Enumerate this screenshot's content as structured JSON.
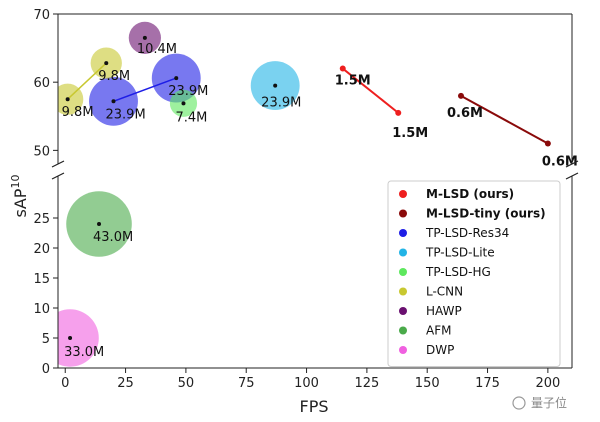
{
  "chart_data": {
    "type": "scatter",
    "xlabel": "FPS",
    "ylabel": "sAP",
    "ylabel_sup": "10",
    "xlim": [
      -3,
      210
    ],
    "xticks": [
      0,
      25,
      50,
      75,
      100,
      125,
      150,
      175,
      200
    ],
    "upper_panel": {
      "ylim": [
        48,
        70
      ],
      "yticks": [
        50,
        60,
        70
      ]
    },
    "lower_panel": {
      "ylim": [
        0,
        32
      ],
      "yticks": [
        0,
        5,
        10,
        15,
        20,
        25
      ]
    },
    "legend_position": "lower-right",
    "series": [
      {
        "name": "M-LSD (ours)",
        "color": "#ee1f1f",
        "bold": true,
        "points": [
          {
            "x": 115,
            "y": 62.0,
            "label": "1.5M"
          },
          {
            "x": 138,
            "y": 55.5,
            "label": "1.5M"
          }
        ]
      },
      {
        "name": "M-LSD-tiny (ours)",
        "color": "#8a0a0a",
        "bold": true,
        "points": [
          {
            "x": 164,
            "y": 58.0,
            "label": "0.6M"
          },
          {
            "x": 200,
            "y": 51.0,
            "label": "0.6M"
          }
        ]
      },
      {
        "name": "TP-LSD-Res34",
        "color": "#1e1ee6",
        "points": [
          {
            "x": 20,
            "y": 57.2,
            "label": "23.9M"
          },
          {
            "x": 46,
            "y": 60.6,
            "label": "23.9M"
          }
        ]
      },
      {
        "name": "TP-LSD-Lite",
        "color": "#22b4e6",
        "points": [
          {
            "x": 87,
            "y": 59.5,
            "label": "23.9M"
          }
        ]
      },
      {
        "name": "TP-LSD-HG",
        "color": "#5ee85e",
        "points": [
          {
            "x": 49,
            "y": 56.9,
            "label": "7.4M"
          }
        ]
      },
      {
        "name": "L-CNN",
        "color": "#c8c830",
        "points": [
          {
            "x": 1,
            "y": 57.5,
            "label": "9.8M"
          },
          {
            "x": 17,
            "y": 62.8,
            "label": "9.8M"
          }
        ]
      },
      {
        "name": "HAWP",
        "color": "#6a1070",
        "points": [
          {
            "x": 33,
            "y": 66.5,
            "label": "10.4M"
          }
        ]
      },
      {
        "name": "AFM",
        "color": "#4aaa4a",
        "points": [
          {
            "x": 14,
            "y": 24.0,
            "label": "43.0M"
          }
        ]
      },
      {
        "name": "DWP",
        "color": "#f060e0",
        "points": [
          {
            "x": 2,
            "y": 5.0,
            "label": "33.0M"
          }
        ]
      }
    ]
  },
  "watermark": "量子位"
}
